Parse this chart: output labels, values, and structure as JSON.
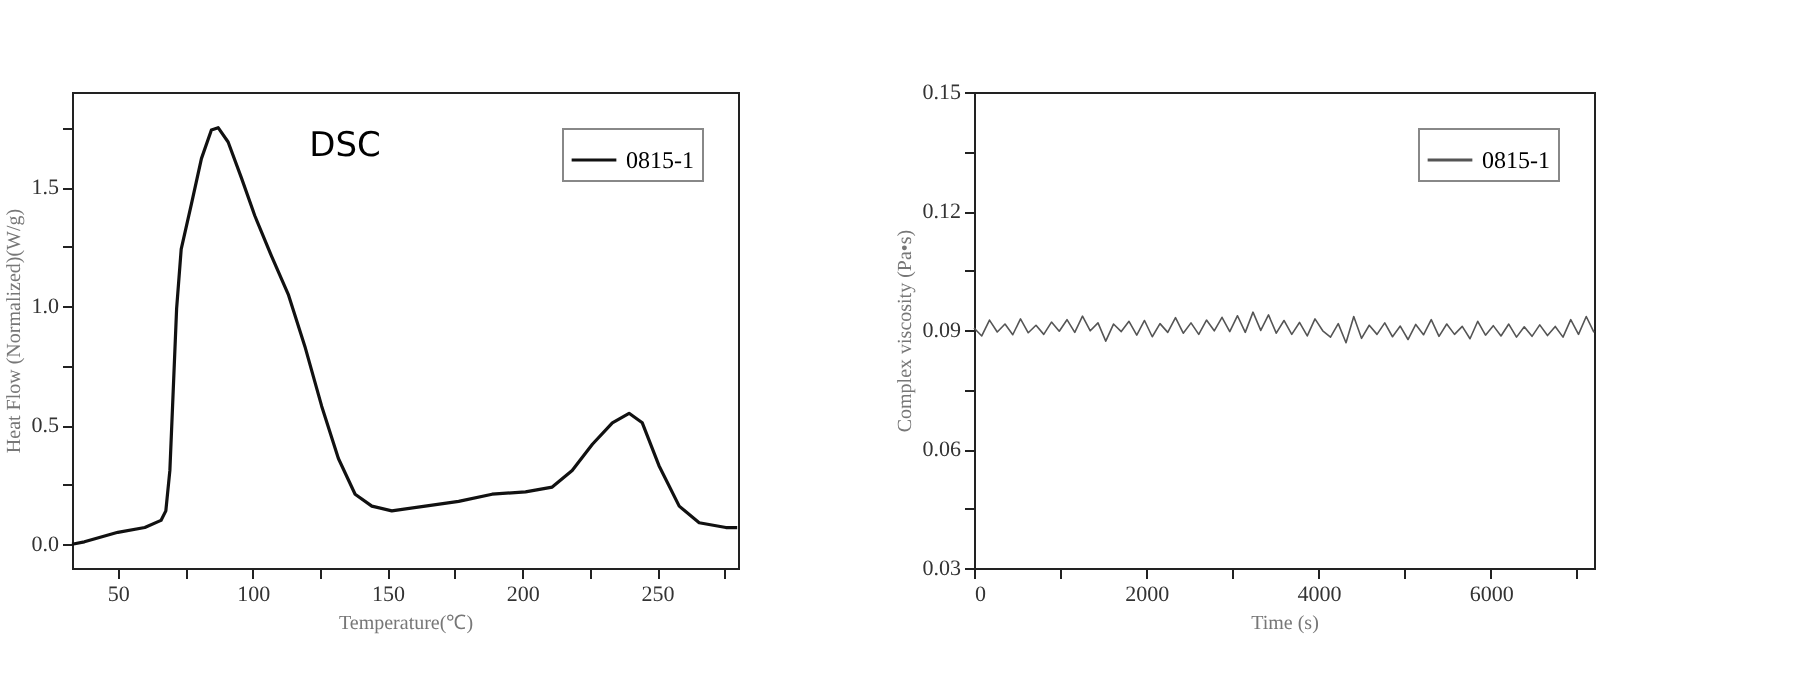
{
  "chart_data": [
    {
      "type": "line",
      "title": "DSC",
      "xlabel": "Temperature(℃)",
      "ylabel": "Heat Flow (Normalized)(W/g)",
      "x": [
        33,
        37.6,
        50,
        60,
        66,
        67.8,
        69.3,
        70.3,
        71.8,
        73.5,
        77.3,
        81,
        84.7,
        87.2,
        90.9,
        95.8,
        100.8,
        107,
        113.2,
        119.4,
        125.6,
        131.8,
        138,
        144.2,
        151.6,
        164,
        176.4,
        188.8,
        201.2,
        211.1,
        218.5,
        226,
        233.4,
        239.6,
        244.5,
        250.7,
        258.2,
        265.6,
        275.5,
        279.7
      ],
      "series": [
        {
          "name": "0815-1",
          "color": "#111111",
          "values": [
            0,
            0.01,
            0.05,
            0.07,
            0.1,
            0.14,
            0.31,
            0.58,
            0.99,
            1.24,
            1.43,
            1.62,
            1.74,
            1.75,
            1.69,
            1.54,
            1.38,
            1.21,
            1.05,
            0.83,
            0.58,
            0.36,
            0.21,
            0.16,
            0.14,
            0.16,
            0.18,
            0.21,
            0.22,
            0.24,
            0.31,
            0.42,
            0.51,
            0.55,
            0.51,
            0.33,
            0.16,
            0.09,
            0.07,
            0.07
          ]
        }
      ],
      "xlim": [
        33,
        280
      ],
      "xticks": [
        50,
        {
          "value": 75,
          "label": null
        },
        100,
        {
          "value": 125,
          "label": null
        },
        150,
        {
          "value": 175,
          "label": null
        },
        200,
        {
          "value": 225,
          "label": null
        },
        250,
        {
          "value": 275,
          "label": null
        }
      ],
      "ylim": [
        -0.1,
        1.9
      ],
      "yticks": [
        {
          "value": 0,
          "label": "0.0"
        },
        {
          "value": 0.25,
          "label": null
        },
        0.5,
        {
          "value": 0.75,
          "label": null
        },
        {
          "value": 1,
          "label": "1.0"
        },
        {
          "value": 1.25,
          "label": null
        },
        1.5,
        {
          "value": 1.75,
          "label": null
        }
      ],
      "legend": "top right",
      "grid": false,
      "line_style": "solid"
    },
    {
      "type": "line",
      "xlabel": "Time (s)",
      "ylabel": "Complex viscosity (Pa•s)",
      "x": [
        0,
        90,
        180,
        270,
        360,
        450,
        540,
        630,
        720,
        810,
        900,
        990,
        1080,
        1170,
        1260,
        1350,
        1440,
        1530,
        1620,
        1710,
        1800,
        1890,
        1980,
        2070,
        2160,
        2250,
        2340,
        2430,
        2520,
        2610,
        2700,
        2790,
        2880,
        2970,
        3060,
        3150,
        3240,
        3330,
        3420,
        3510,
        3600,
        3690,
        3780,
        3870,
        3960,
        4050,
        4140,
        4230,
        4320,
        4410,
        4500,
        4590,
        4680,
        4770,
        4860,
        4950,
        5040,
        5130,
        5220,
        5310,
        5400,
        5490,
        5580,
        5670,
        5760,
        5850,
        5940,
        6030,
        6120,
        6210,
        6300,
        6390,
        6480,
        6570,
        6660,
        6750,
        6840,
        6930,
        7020,
        7110,
        7200
      ],
      "series": [
        {
          "name": "0815-1",
          "color": "#555555",
          "values": [
            0.0905,
            0.0885,
            0.0925,
            0.0895,
            0.0915,
            0.0888,
            0.0928,
            0.0893,
            0.0912,
            0.0889,
            0.092,
            0.0897,
            0.0926,
            0.0894,
            0.0935,
            0.0898,
            0.0918,
            0.0872,
            0.0915,
            0.0896,
            0.0922,
            0.0887,
            0.0924,
            0.0883,
            0.0916,
            0.0894,
            0.0931,
            0.0892,
            0.0918,
            0.0889,
            0.0925,
            0.0898,
            0.0932,
            0.0896,
            0.0936,
            0.0894,
            0.0945,
            0.0899,
            0.0938,
            0.0892,
            0.0924,
            0.0889,
            0.0919,
            0.0885,
            0.0928,
            0.0898,
            0.0882,
            0.0916,
            0.0868,
            0.0934,
            0.0879,
            0.0912,
            0.0889,
            0.0918,
            0.0883,
            0.091,
            0.0876,
            0.0914,
            0.0888,
            0.0926,
            0.0884,
            0.0915,
            0.0889,
            0.0909,
            0.0878,
            0.0922,
            0.0887,
            0.0911,
            0.0885,
            0.0915,
            0.0882,
            0.0908,
            0.0884,
            0.0913,
            0.0886,
            0.0909,
            0.0882,
            0.0926,
            0.0889,
            0.0934,
            0.0894
          ]
        }
      ],
      "xlim": [
        0,
        7200
      ],
      "xticks": [
        0,
        {
          "value": 1000,
          "label": null
        },
        2000,
        {
          "value": 3000,
          "label": null
        },
        4000,
        {
          "value": 5000,
          "label": null
        },
        6000,
        {
          "value": 7000,
          "label": null
        }
      ],
      "ylim": [
        0.03,
        0.15
      ],
      "yticks": [
        0.03,
        {
          "value": 0.045,
          "label": null
        },
        0.06,
        {
          "value": 0.075,
          "label": null
        },
        0.09,
        {
          "value": 0.105,
          "label": null
        },
        0.12,
        {
          "value": 0.135,
          "label": null
        },
        0.15
      ],
      "legend": "top right",
      "grid": false,
      "line_style": "solid"
    }
  ]
}
